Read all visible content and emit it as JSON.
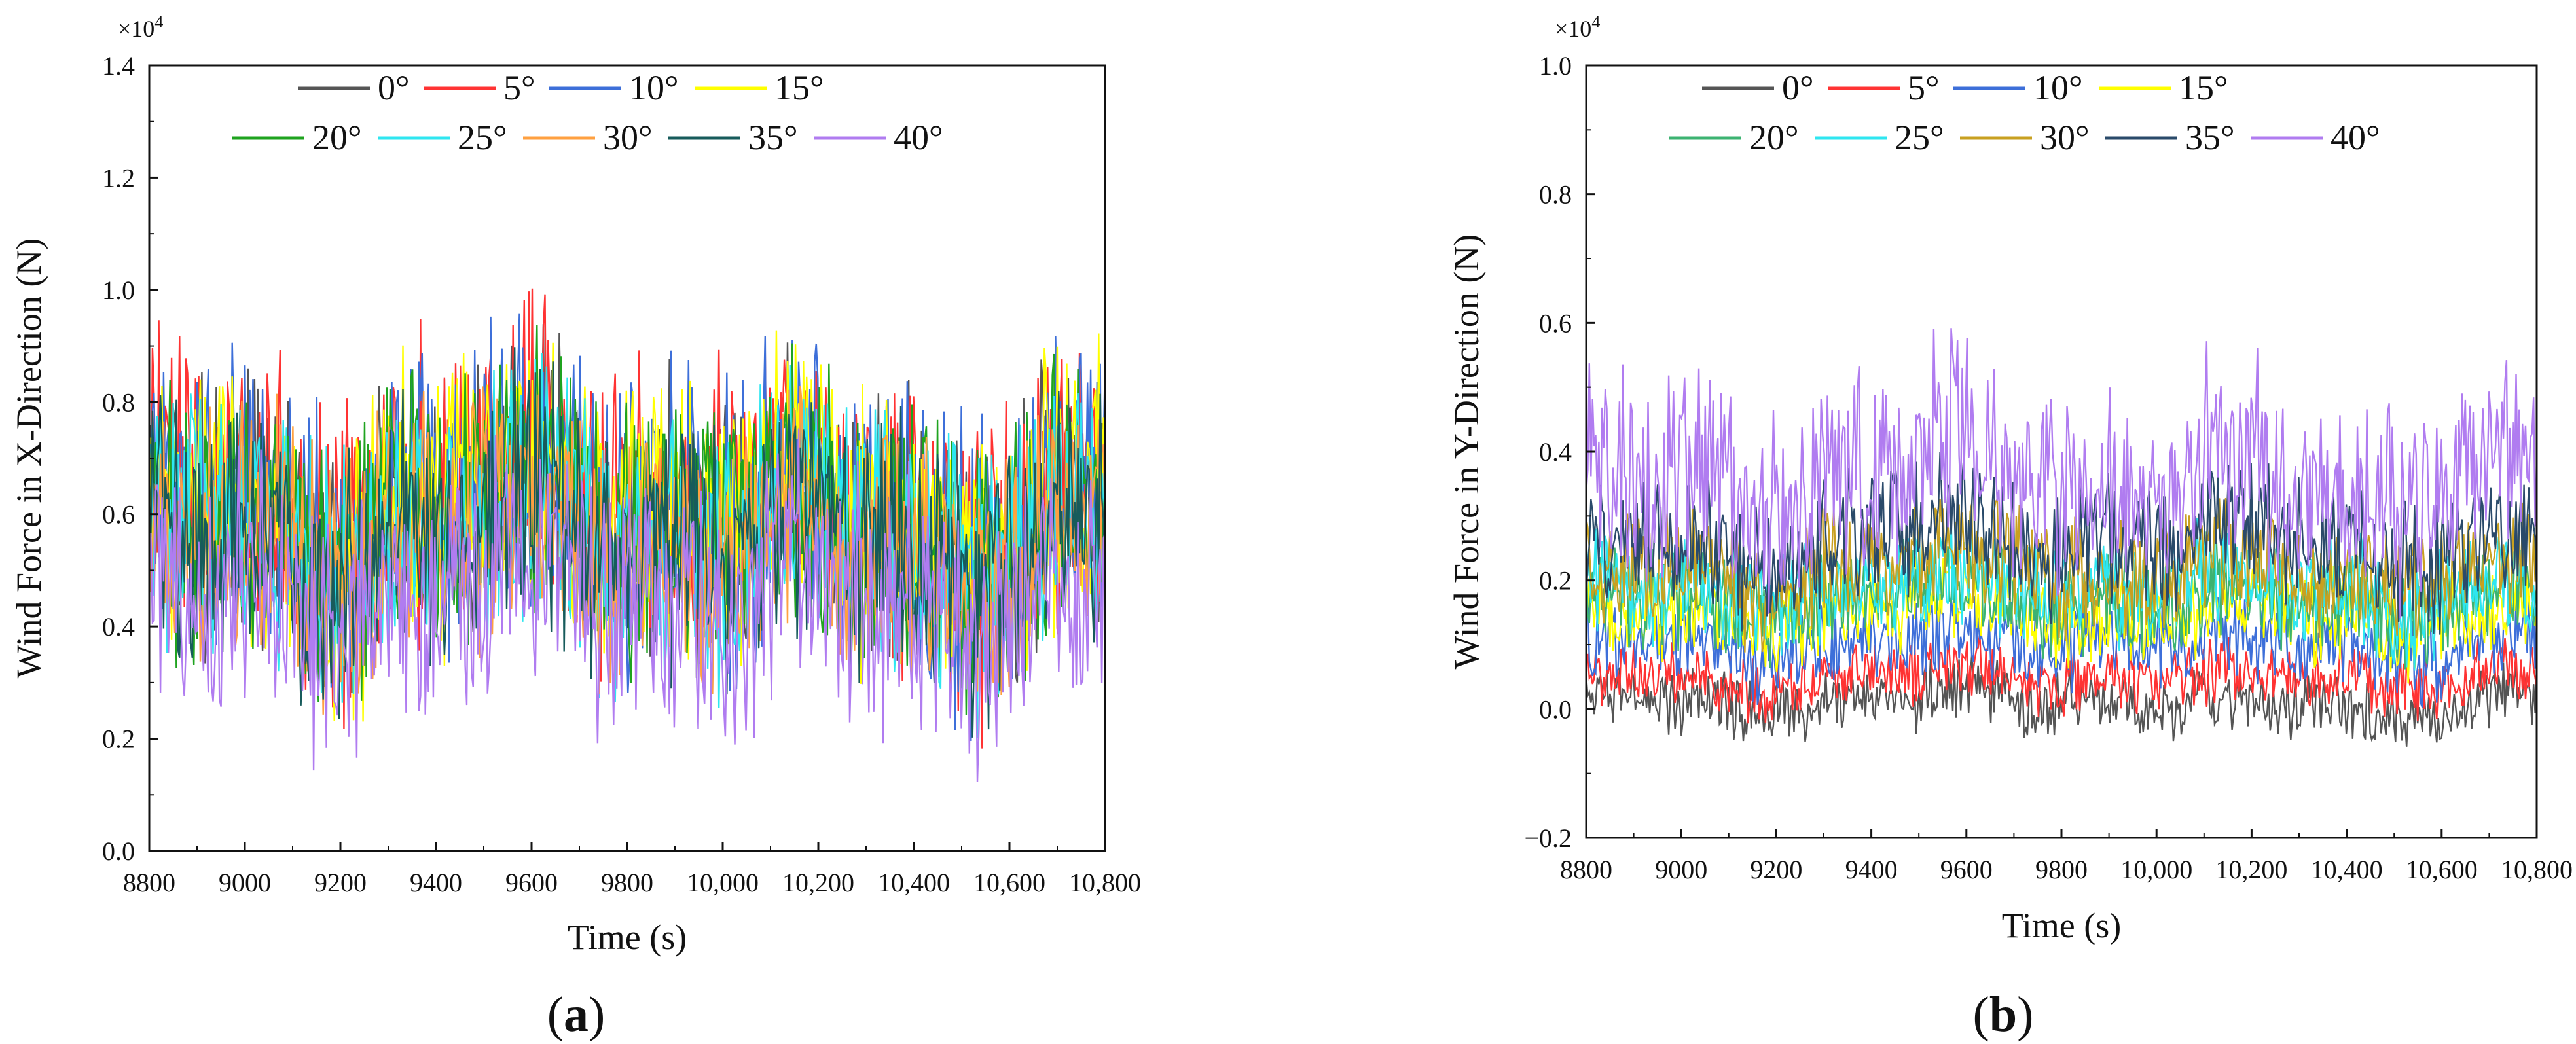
{
  "chart_data": [
    {
      "type": "line",
      "panel_label": "(a)",
      "panel_letter": "a",
      "title": "",
      "xlabel": "Time (s)",
      "ylabel": "Wind Force in X-Direction (N)",
      "multiplier_base": "×10",
      "multiplier_exp": "4",
      "xlim": [
        8800,
        10800
      ],
      "ylim": [
        0.0,
        1.4
      ],
      "xticks": [
        8800,
        9000,
        9200,
        9400,
        9600,
        9800,
        10000,
        10200,
        10400,
        10600,
        10800
      ],
      "xtick_labels": [
        "8800",
        "9000",
        "9200",
        "9400",
        "9600",
        "9800",
        "10,000",
        "10,200",
        "10,400",
        "10,600",
        "10,800"
      ],
      "yticks": [
        0.0,
        0.2,
        0.4,
        0.6,
        0.8,
        1.0,
        1.2,
        1.4
      ],
      "ytick_labels": [
        "0.0",
        "0.2",
        "0.4",
        "0.6",
        "0.8",
        "1.0",
        "1.2",
        "1.4"
      ],
      "legend_location": "top-center",
      "series": [
        {
          "name": "0°",
          "color": "#555555",
          "mean": 0.6,
          "amp": 0.17
        },
        {
          "name": "5°",
          "color": "#ff3333",
          "mean": 0.62,
          "amp": 0.19
        },
        {
          "name": "10°",
          "color": "#3d6fd9",
          "mean": 0.61,
          "amp": 0.19
        },
        {
          "name": "15°",
          "color": "#ffff00",
          "mean": 0.6,
          "amp": 0.18
        },
        {
          "name": "20°",
          "color": "#1fa31f",
          "mean": 0.58,
          "amp": 0.17
        },
        {
          "name": "25°",
          "color": "#2ee6f0",
          "mean": 0.57,
          "amp": 0.17
        },
        {
          "name": "30°",
          "color": "#ffa040",
          "mean": 0.56,
          "amp": 0.16
        },
        {
          "name": "35°",
          "color": "#175b5b",
          "mean": 0.55,
          "amp": 0.16
        },
        {
          "name": "40°",
          "color": "#b07cf0",
          "mean": 0.45,
          "amp": 0.16
        }
      ]
    },
    {
      "type": "line",
      "panel_label": "(b)",
      "panel_letter": "b",
      "title": "",
      "xlabel": "Time (s)",
      "ylabel": "Wind Force in Y-Direction (N)",
      "multiplier_base": "×10",
      "multiplier_exp": "4",
      "xlim": [
        8800,
        10800
      ],
      "ylim": [
        -0.2,
        1.0
      ],
      "xticks": [
        8800,
        9000,
        9200,
        9400,
        9600,
        9800,
        10000,
        10200,
        10400,
        10600,
        10800
      ],
      "xtick_labels": [
        "8800",
        "9000",
        "9200",
        "9400",
        "9600",
        "9800",
        "10,000",
        "10,200",
        "10,400",
        "10,600",
        "10,800"
      ],
      "yticks": [
        -0.2,
        0.0,
        0.2,
        0.4,
        0.6,
        0.8,
        1.0
      ],
      "ytick_labels": [
        "−0.2",
        "0.0",
        "0.2",
        "0.4",
        "0.6",
        "0.8",
        "1.0"
      ],
      "legend_location": "top-center",
      "series": [
        {
          "name": "0°",
          "color": "#555555",
          "mean": 0.01,
          "amp": 0.035
        },
        {
          "name": "5°",
          "color": "#ff3333",
          "mean": 0.05,
          "amp": 0.035
        },
        {
          "name": "10°",
          "color": "#3d6fd9",
          "mean": 0.1,
          "amp": 0.045
        },
        {
          "name": "15°",
          "color": "#ffff00",
          "mean": 0.15,
          "amp": 0.05
        },
        {
          "name": "20°",
          "color": "#3cb371",
          "mean": 0.17,
          "amp": 0.055
        },
        {
          "name": "25°",
          "color": "#2ee6f0",
          "mean": 0.19,
          "amp": 0.06
        },
        {
          "name": "30°",
          "color": "#c8a020",
          "mean": 0.22,
          "amp": 0.065
        },
        {
          "name": "35°",
          "color": "#2a4a6a",
          "mean": 0.26,
          "amp": 0.07
        },
        {
          "name": "40°",
          "color": "#b07cf0",
          "mean": 0.36,
          "amp": 0.11
        }
      ]
    }
  ]
}
